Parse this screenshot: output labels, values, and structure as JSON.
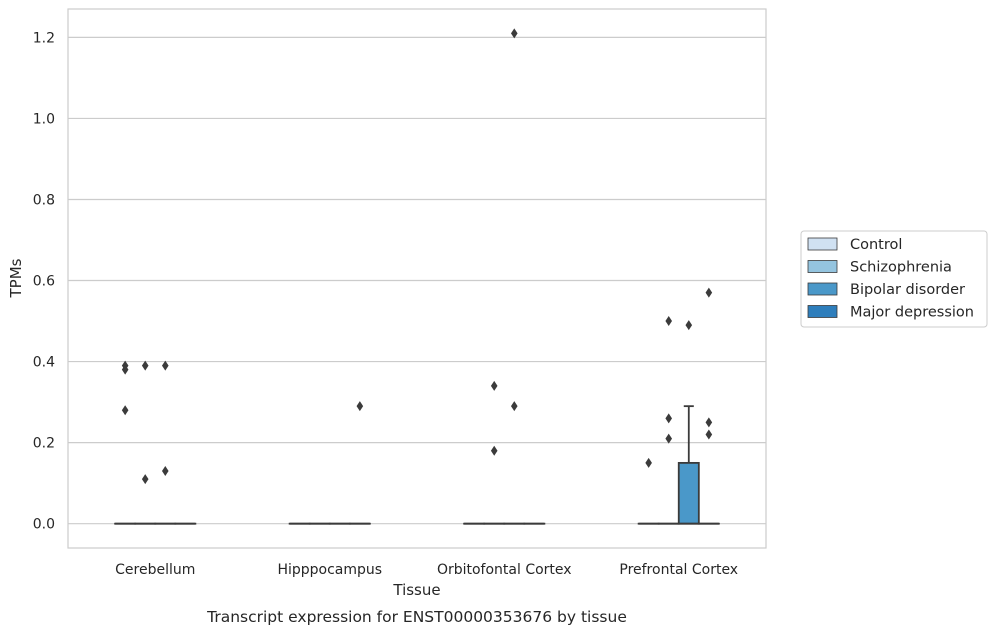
{
  "caption": "Transcript expression for ENST00000353676 by tissue",
  "chart_data": {
    "type": "box",
    "xlabel": "Tissue",
    "ylabel": "TPMs",
    "ylim": [
      -0.06,
      1.27
    ],
    "yticks": [
      0.0,
      0.2,
      0.4,
      0.6,
      0.8,
      1.0,
      1.2
    ],
    "ytick_labels": [
      "0.0",
      "0.2",
      "0.4",
      "0.6",
      "0.8",
      "1.0",
      "1.2"
    ],
    "grid": "horizontal",
    "legend_position": "right",
    "categories": [
      "Cerebellum",
      "Hipppocampus",
      "Orbitofontal Cortex",
      "Prefrontal Cortex"
    ],
    "series": [
      {
        "name": "Control",
        "color": "#d0e1f2",
        "boxes": [
          {
            "q1": 0,
            "median": 0,
            "q3": 0,
            "whisker_low": 0,
            "whisker_high": 0,
            "outliers": [
              0.28,
              0.38,
              0.39
            ]
          },
          {
            "q1": 0,
            "median": 0,
            "q3": 0,
            "whisker_low": 0,
            "whisker_high": 0,
            "outliers": []
          },
          {
            "q1": 0,
            "median": 0,
            "q3": 0,
            "whisker_low": 0,
            "whisker_high": 0,
            "outliers": []
          },
          {
            "q1": 0,
            "median": 0,
            "q3": 0,
            "whisker_low": 0,
            "whisker_high": 0,
            "outliers": [
              0.15
            ]
          }
        ]
      },
      {
        "name": "Schizophrenia",
        "color": "#94c4df",
        "boxes": [
          {
            "q1": 0,
            "median": 0,
            "q3": 0,
            "whisker_low": 0,
            "whisker_high": 0,
            "outliers": [
              0.11,
              0.39
            ]
          },
          {
            "q1": 0,
            "median": 0,
            "q3": 0,
            "whisker_low": 0,
            "whisker_high": 0,
            "outliers": []
          },
          {
            "q1": 0,
            "median": 0,
            "q3": 0,
            "whisker_low": 0,
            "whisker_high": 0,
            "outliers": [
              0.18,
              0.34
            ]
          },
          {
            "q1": 0,
            "median": 0,
            "q3": 0,
            "whisker_low": 0,
            "whisker_high": 0,
            "outliers": [
              0.21,
              0.26,
              0.5
            ]
          }
        ]
      },
      {
        "name": "Bipolar disorder",
        "color": "#4a98c9",
        "boxes": [
          {
            "q1": 0,
            "median": 0,
            "q3": 0,
            "whisker_low": 0,
            "whisker_high": 0,
            "outliers": [
              0.13,
              0.39
            ]
          },
          {
            "q1": 0,
            "median": 0,
            "q3": 0,
            "whisker_low": 0,
            "whisker_high": 0,
            "outliers": []
          },
          {
            "q1": 0,
            "median": 0,
            "q3": 0,
            "whisker_low": 0,
            "whisker_high": 0,
            "outliers": [
              0.29,
              1.21
            ]
          },
          {
            "q1": 0,
            "median": 0,
            "q3": 0.15,
            "whisker_low": 0,
            "whisker_high": 0.29,
            "outliers": [
              0.49
            ]
          }
        ]
      },
      {
        "name": "Major depression",
        "color": "#2e7ebc",
        "boxes": [
          {
            "q1": 0,
            "median": 0,
            "q3": 0,
            "whisker_low": 0,
            "whisker_high": 0,
            "outliers": []
          },
          {
            "q1": 0,
            "median": 0,
            "q3": 0,
            "whisker_low": 0,
            "whisker_high": 0,
            "outliers": [
              0.29
            ]
          },
          {
            "q1": 0,
            "median": 0,
            "q3": 0,
            "whisker_low": 0,
            "whisker_high": 0,
            "outliers": []
          },
          {
            "q1": 0,
            "median": 0,
            "q3": 0,
            "whisker_low": 0,
            "whisker_high": 0,
            "outliers": [
              0.22,
              0.25,
              0.57
            ]
          }
        ]
      }
    ]
  }
}
